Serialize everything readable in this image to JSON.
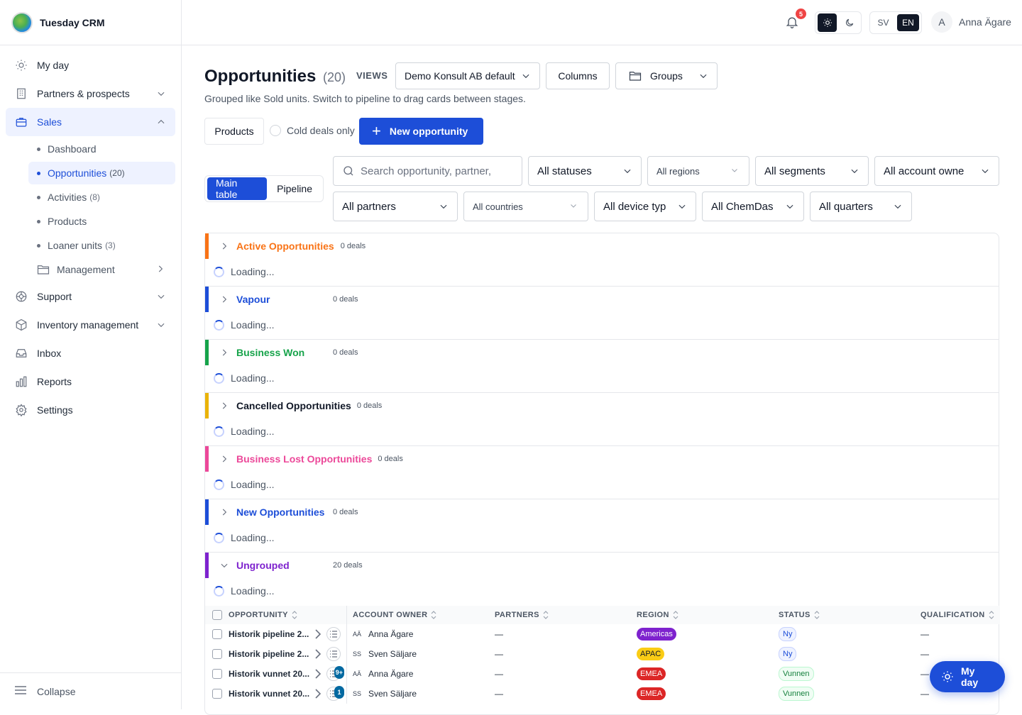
{
  "app": {
    "name": "Tuesday CRM"
  },
  "sidebar": {
    "items": [
      {
        "label": "My day",
        "icon": "sun-icon"
      },
      {
        "label": "Partners & prospects",
        "icon": "building-icon"
      },
      {
        "label": "Sales",
        "icon": "briefcase-icon"
      },
      {
        "label": "Support",
        "icon": "lifebuoy-icon"
      },
      {
        "label": "Inventory management",
        "icon": "box-icon"
      },
      {
        "label": "Inbox",
        "icon": "inbox-icon"
      },
      {
        "label": "Reports",
        "icon": "bar-chart-icon"
      },
      {
        "label": "Settings",
        "icon": "gear-icon"
      }
    ],
    "sales_sub": [
      {
        "label": "Dashboard",
        "count": ""
      },
      {
        "label": "Opportunities",
        "count": "(20)"
      },
      {
        "label": "Activities",
        "count": "(8)"
      },
      {
        "label": "Products",
        "count": ""
      },
      {
        "label": "Loaner units",
        "count": "(3)"
      },
      {
        "label": "Management",
        "count": ""
      }
    ],
    "collapse": "Collapse"
  },
  "topbar": {
    "notifications": "5",
    "lang_sv": "SV",
    "lang_en": "EN",
    "avatar_initial": "A",
    "user_name": "Anna Ägare"
  },
  "header": {
    "title": "Opportunities",
    "count": "(20)",
    "views_label": "VIEWS",
    "view_select": "Demo Konsult AB default",
    "columns_btn": "Columns",
    "groups_btn": "Groups",
    "subtitle": "Grouped like Sold units. Switch to pipeline to drag cards between stages.",
    "products_btn": "Products",
    "cold_deals": "Cold deals only",
    "new_btn": "New opportunity"
  },
  "view_tabs": {
    "main": "Main table",
    "pipeline": "Pipeline"
  },
  "filters": {
    "search_placeholder": "Search opportunity, partner,",
    "statuses": "All statuses",
    "regions": "All regions",
    "segments": "All segments",
    "account_owners": "All account owne",
    "partners": "All partners",
    "countries": "All countries",
    "device_types": "All device typ",
    "chemdas": "All ChemDas",
    "quarters": "All quarters"
  },
  "groups": [
    {
      "name": "Active Opportunities",
      "count": "0 deals",
      "color": "#f97316",
      "loading": "Loading..."
    },
    {
      "name": "Vapour",
      "count": "0 deals",
      "color": "#1d4ed8",
      "loading": "Loading..."
    },
    {
      "name": "Business Won",
      "count": "0 deals",
      "color": "#16a34a",
      "loading": "Loading..."
    },
    {
      "name": "Cancelled Opportunities",
      "count": "0 deals",
      "color": "#eab308",
      "text_color": "#111827",
      "loading": "Loading..."
    },
    {
      "name": "Business Lost Opportunities",
      "count": "0 deals",
      "color": "#ec4899",
      "loading": "Loading..."
    },
    {
      "name": "New Opportunities",
      "count": "0 deals",
      "color": "#1d4ed8",
      "loading": "Loading..."
    },
    {
      "name": "Ungrouped",
      "count": "20 deals",
      "color": "#7e22ce",
      "loading": "Loading..."
    }
  ],
  "table": {
    "headers": [
      "OPPORTUNITY",
      "ACCOUNT OWNER",
      "PARTNERS",
      "REGION",
      "STATUS",
      "QUALIFICATION"
    ],
    "rows": [
      {
        "name": "Historik pipeline 2...",
        "badge": "",
        "initials": "AÄ",
        "owner": "Anna Ägare",
        "partners": "—",
        "region": "Americas",
        "region_color": "#7e22ce",
        "status": "Ny",
        "qualification": "—"
      },
      {
        "name": "Historik pipeline 2...",
        "badge": "",
        "initials": "SS",
        "owner": "Sven Säljare",
        "partners": "—",
        "region": "APAC",
        "region_color": "#facc15",
        "status": "Ny",
        "qualification": "—"
      },
      {
        "name": "Historik vunnet 20...",
        "badge": "9+",
        "initials": "AÄ",
        "owner": "Anna Ägare",
        "partners": "—",
        "region": "EMEA",
        "region_color": "#dc2626",
        "status": "Vunnen",
        "qualification": "—"
      },
      {
        "name": "Historik vunnet 20...",
        "badge": "1",
        "initials": "SS",
        "owner": "Sven Säljare",
        "partners": "—",
        "region": "EMEA",
        "region_color": "#dc2626",
        "status": "Vunnen",
        "qualification": "—"
      }
    ]
  },
  "fab": {
    "label": "My day"
  }
}
